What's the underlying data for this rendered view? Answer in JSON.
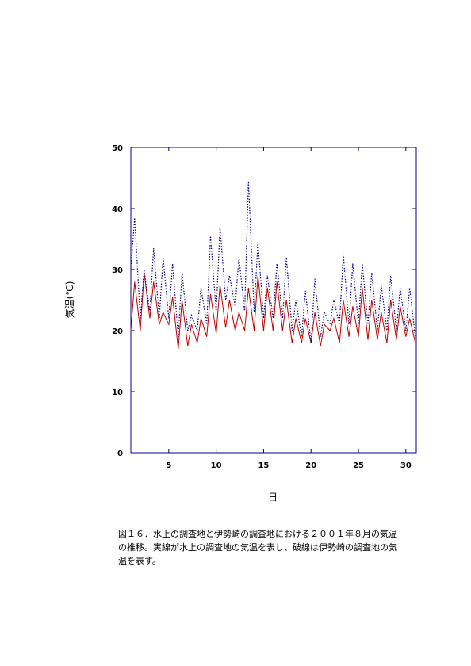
{
  "chart_data": {
    "type": "line",
    "xlabel": "日",
    "ylabel": "気温(℃)",
    "x": [
      1,
      1.4,
      2,
      2.4,
      3,
      3.4,
      4,
      4.4,
      5,
      5.4,
      6,
      6.4,
      7,
      7.4,
      8,
      8.4,
      9,
      9.4,
      10,
      10.4,
      11,
      11.4,
      12,
      12.4,
      13,
      13.4,
      14,
      14.4,
      15,
      15.4,
      16,
      16.4,
      17,
      17.4,
      18,
      18.4,
      19,
      19.4,
      20,
      20.4,
      21,
      21.4,
      22,
      22.4,
      23,
      23.4,
      24,
      24.4,
      25,
      25.4,
      26,
      26.4,
      27,
      27.4,
      28,
      28.4,
      29,
      29.4,
      30,
      30.4,
      31
    ],
    "series": [
      {
        "name": "水上",
        "color": "#c00000",
        "linestyle": "solid",
        "values": [
          20,
          28,
          20,
          29.5,
          22,
          28,
          21,
          23,
          21,
          25.5,
          17,
          25,
          17.5,
          21,
          18,
          22,
          19,
          26,
          19.5,
          27.5,
          20.5,
          25,
          20,
          23,
          20,
          27,
          20,
          29,
          20,
          27,
          20,
          28,
          20,
          25,
          18,
          22,
          18,
          22,
          18,
          23,
          17.5,
          21,
          20,
          22,
          18,
          25,
          19,
          24,
          19,
          27,
          18.5,
          25,
          18.5,
          23,
          18,
          25,
          18.5,
          24,
          19,
          22,
          18
        ]
      },
      {
        "name": "伊勢崎",
        "color": "#00008b",
        "linestyle": "dotted",
        "values": [
          30,
          38.5,
          22,
          30,
          23,
          33.5,
          22,
          32,
          22,
          31,
          19,
          29.5,
          20,
          22.5,
          20,
          27,
          21,
          35.5,
          23,
          37,
          25,
          29,
          24,
          32,
          23,
          44.5,
          23,
          34.5,
          22,
          29,
          22,
          31,
          22,
          32,
          20,
          25,
          19,
          26.5,
          18,
          28.5,
          19,
          23,
          21,
          25,
          21,
          32.5,
          21,
          31,
          21,
          31,
          21,
          29.5,
          20,
          27.5,
          20,
          29,
          20,
          27,
          20,
          27,
          19
        ]
      }
    ],
    "xlim": [
      1,
      31.1
    ],
    "xticks": [
      5,
      10,
      15,
      20,
      25,
      30
    ],
    "ylim": [
      0,
      50
    ],
    "yticks": [
      0,
      10,
      20,
      30,
      40,
      50
    ],
    "caption": [
      "図１６．水上の調査地と伊勢崎の調査地における２００１年８月の気温",
      "の推移。実線が水上の調査地の気温を表し、破線は伊勢崎の調査地の気",
      "温を表す。"
    ]
  }
}
